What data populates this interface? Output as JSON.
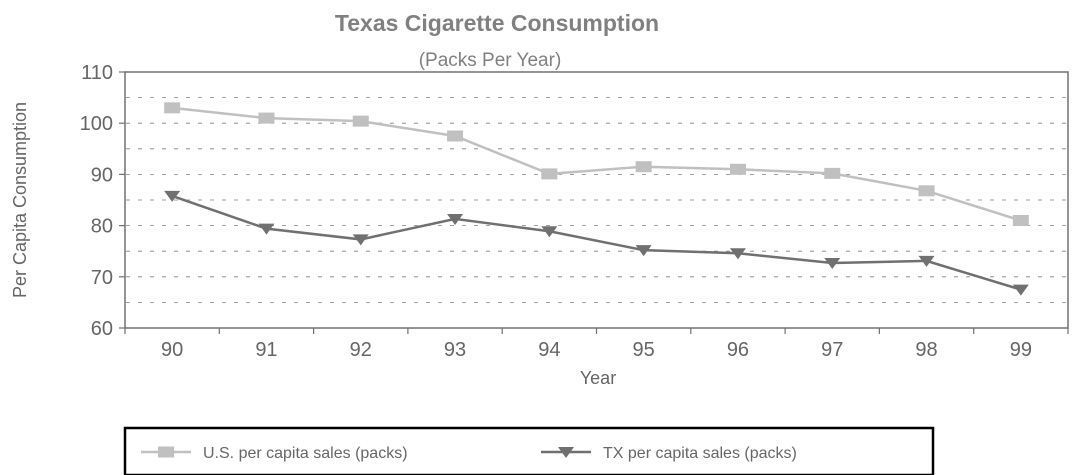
{
  "chart_data": {
    "type": "line",
    "title": "Texas Cigarette Consumption",
    "subtitle": "(Packs Per Year)",
    "xlabel": "Year",
    "ylabel": "Per Capita Consumption",
    "categories": [
      "90",
      "91",
      "92",
      "93",
      "94",
      "95",
      "96",
      "97",
      "98",
      "99"
    ],
    "ylim": [
      60,
      110
    ],
    "yticks": [
      "60",
      "70",
      "80",
      "90",
      "100",
      "110"
    ],
    "grid": true,
    "legend_position": "bottom",
    "series": [
      {
        "name": "U.S. per capita sales (packs)",
        "color": "#c0c0c0",
        "marker": "square",
        "values": [
          103,
          101,
          100.4,
          97.5,
          90.1,
          91.5,
          91,
          90.2,
          86.8,
          81
        ]
      },
      {
        "name": "TX per capita sales (packs)",
        "color": "#707070",
        "marker": "triangle-down",
        "values": [
          85.8,
          79.4,
          77.3,
          81.3,
          78.9,
          75.2,
          74.6,
          72.7,
          73.1,
          67.5
        ]
      }
    ]
  }
}
